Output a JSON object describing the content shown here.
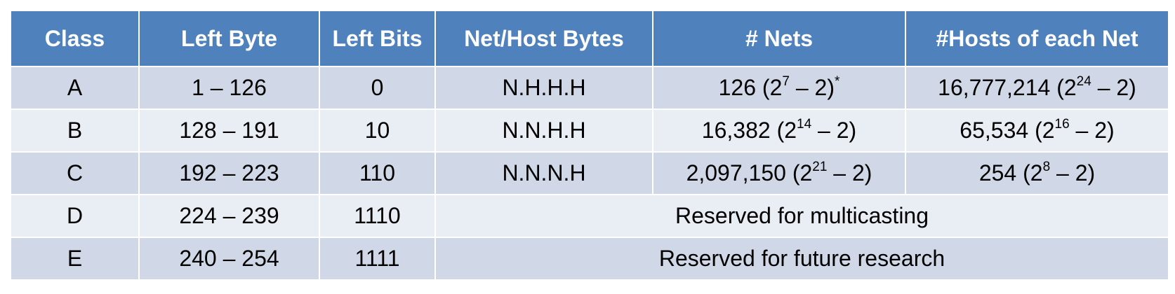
{
  "header": {
    "class": "Class",
    "left_byte": "Left Byte",
    "left_bits": "Left Bits",
    "net_host_bytes": "Net/Host Bytes",
    "nets": "# Nets",
    "hosts": "#Hosts of each Net"
  },
  "rows": [
    {
      "class": "A",
      "left_byte": "1 – 126",
      "left_bits": "0",
      "net_host": "N.H.H.H",
      "nets": {
        "count": "126 (2",
        "exp": "7",
        "tail": " – 2)",
        "note": "*"
      },
      "hosts": {
        "count": "16,777,214 (2",
        "exp": "24",
        "tail": " – 2)"
      }
    },
    {
      "class": "B",
      "left_byte": "128 – 191",
      "left_bits": "10",
      "net_host": "N.N.H.H",
      "nets": {
        "count": "16,382 (2",
        "exp": "14",
        "tail": " – 2)"
      },
      "hosts": {
        "count": "65,534 (2",
        "exp": "16",
        "tail": " – 2)"
      }
    },
    {
      "class": "C",
      "left_byte": "192 – 223",
      "left_bits": "110",
      "net_host": "N.N.N.H",
      "nets": {
        "count": "2,097,150 (2",
        "exp": "21",
        "tail": " – 2)"
      },
      "hosts": {
        "count": "254 (2",
        "exp": "8",
        "tail": " – 2)"
      }
    },
    {
      "class": "D",
      "left_byte": "224 – 239",
      "left_bits": "1110",
      "reserved": "Reserved for multicasting"
    },
    {
      "class": "E",
      "left_byte": "240 – 254",
      "left_bits": "1111",
      "reserved": "Reserved for future research"
    }
  ]
}
